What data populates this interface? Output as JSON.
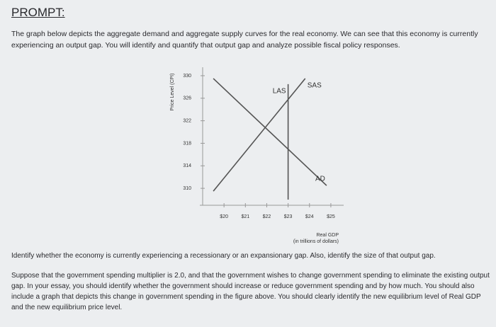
{
  "header": {
    "title": "PROMPT:"
  },
  "intro": "The graph below depicts the aggregate demand and aggregate supply curves for the real economy. We can see that this economy is currently experiencing an output gap. You will identify and quantify that output gap and analyze possible fiscal policy responses.",
  "chart_data": {
    "type": "line",
    "y_label": "Price Level (CPI)",
    "x_label": [
      "Real GDP",
      "(in trillions of dollars)"
    ],
    "xlim": [
      19,
      25.5
    ],
    "ylim": [
      308,
      331
    ],
    "xticks": [
      {
        "value": 20,
        "label": "$20"
      },
      {
        "value": 21,
        "label": "$21"
      },
      {
        "value": 22,
        "label": "$22"
      },
      {
        "value": 23,
        "label": "$23"
      },
      {
        "value": 24,
        "label": "$24"
      },
      {
        "value": 25,
        "label": "$25"
      }
    ],
    "yticks": [
      310,
      314,
      318,
      322,
      326,
      330
    ],
    "series": [
      {
        "name": "LAS",
        "color": "#555555",
        "x": [
          23,
          23
        ],
        "values": [
          308,
          328.5
        ]
      },
      {
        "name": "SAS",
        "color": "#555555",
        "x": [
          19.5,
          23.8
        ],
        "values": [
          309.5,
          329.5
        ]
      },
      {
        "name": "AD",
        "color": "#555555",
        "x": [
          19.5,
          24.8
        ],
        "values": [
          329.5,
          310.5
        ]
      }
    ]
  },
  "questions": [
    "Identify whether the economy is currently experiencing a recessionary or an expansionary gap. Also, identify the size of that output gap.",
    "Suppose that the government spending multiplier is 2.0, and that the government wishes to change government spending to eliminate the existing output gap. In your essay, you should identify whether the government should increase or reduce government spending and by how much. You should also include a graph that depicts this change in government spending in the figure above. You should clearly identify the new equilibrium level of Real GDP and the new equilibrium price level."
  ]
}
